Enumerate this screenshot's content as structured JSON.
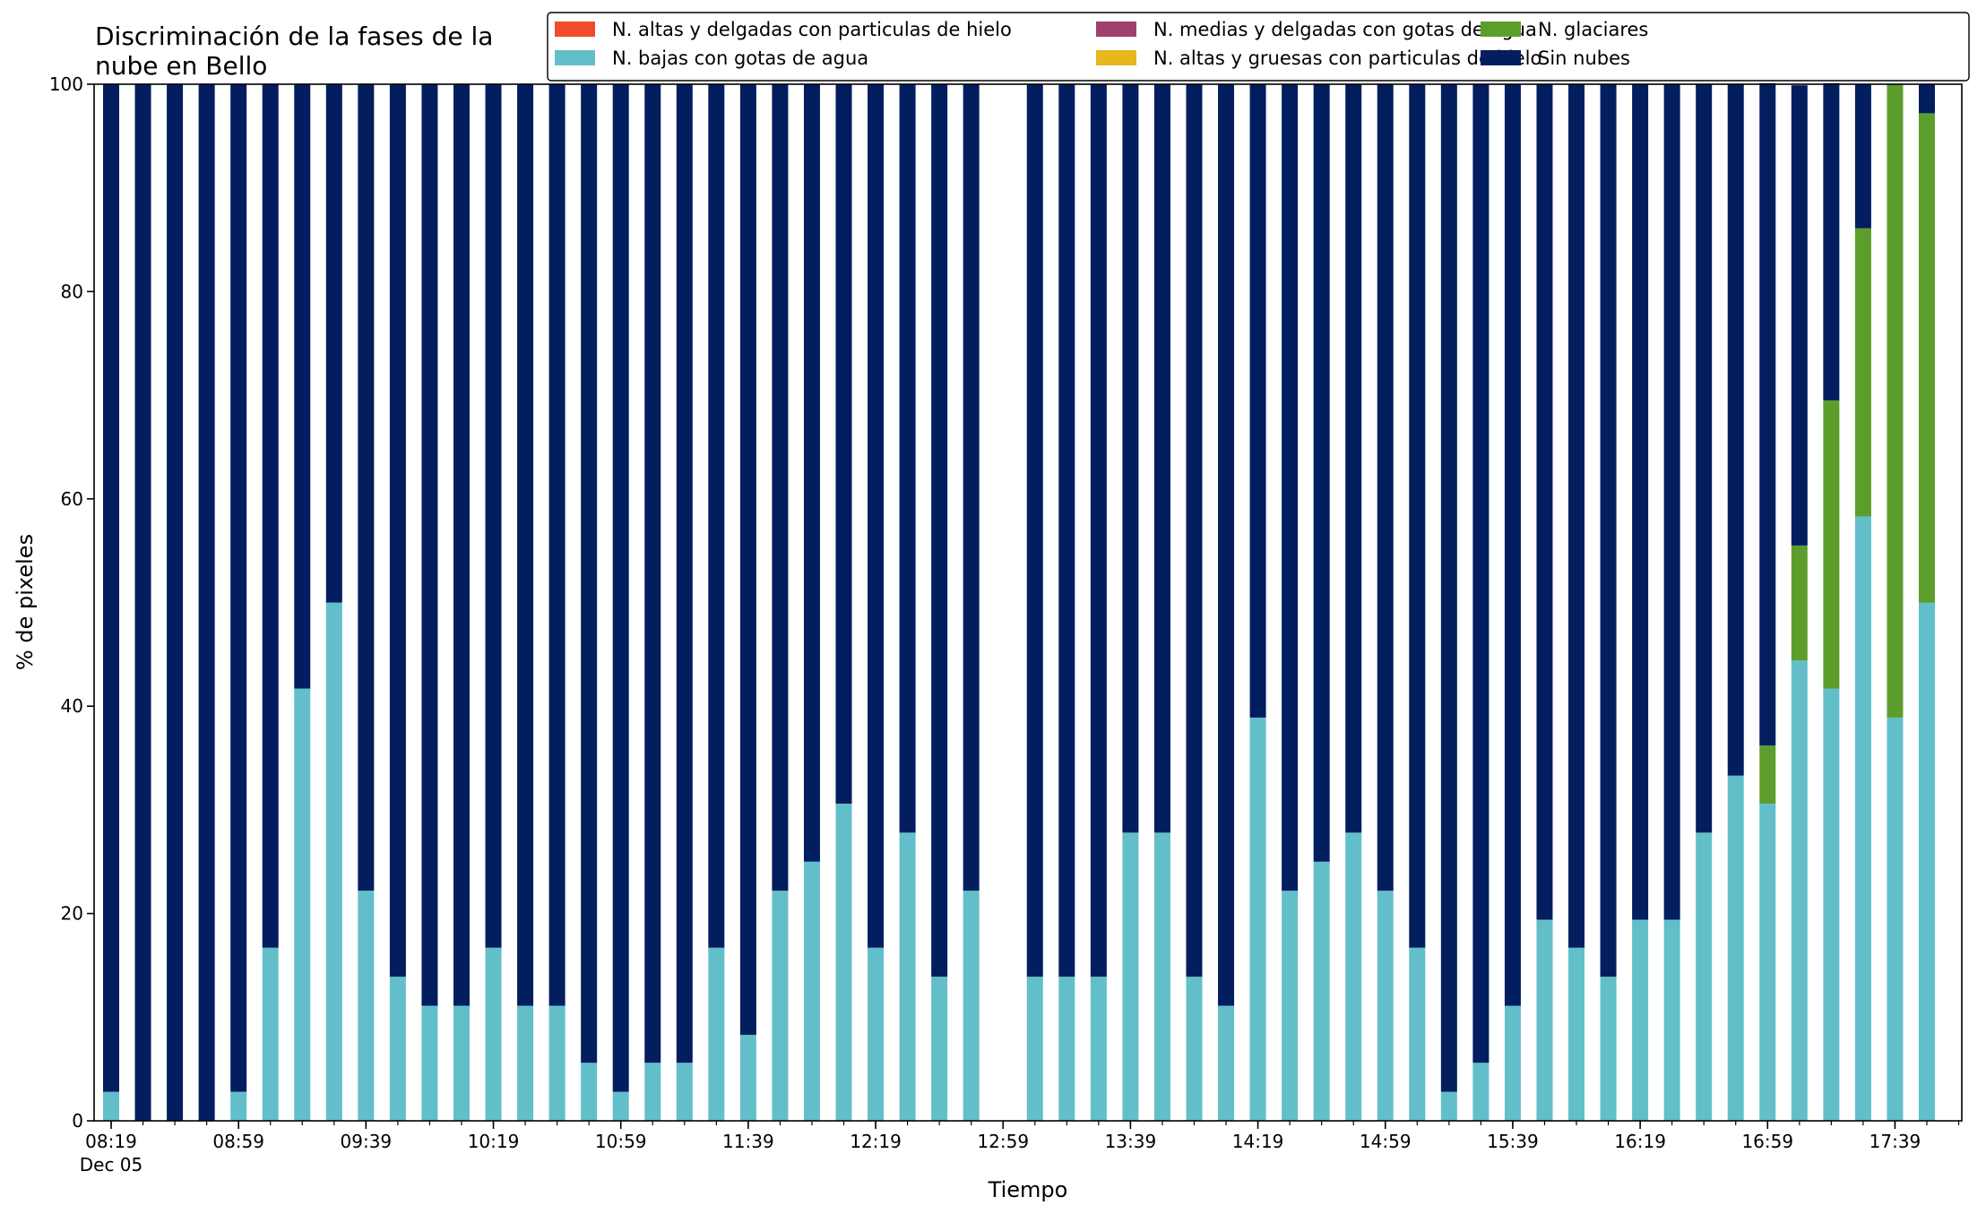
{
  "chart_data": {
    "type": "bar",
    "stacked": true,
    "title": [
      "Discriminación de la fases de la",
      "nube en Bello"
    ],
    "xlabel": "Tiempo",
    "ylabel": "% de pixeles",
    "ylim": [
      0,
      100
    ],
    "yticks": [
      0,
      20,
      40,
      60,
      80,
      100
    ],
    "grid": false,
    "legend_position": "top-right",
    "categories": [
      "08:19",
      "08:29",
      "08:39",
      "08:49",
      "08:59",
      "09:09",
      "09:19",
      "09:29",
      "09:39",
      "09:49",
      "09:59",
      "10:09",
      "10:19",
      "10:29",
      "10:39",
      "10:49",
      "10:59",
      "11:09",
      "11:19",
      "11:29",
      "11:39",
      "11:49",
      "11:59",
      "12:09",
      "12:19",
      "12:29",
      "12:39",
      "12:49",
      "12:59",
      "13:09",
      "13:19",
      "13:29",
      "13:39",
      "13:49",
      "13:59",
      "14:09",
      "14:19",
      "14:29",
      "14:39",
      "14:49",
      "14:59",
      "15:09",
      "15:19",
      "15:29",
      "15:39",
      "15:49",
      "15:59",
      "16:09",
      "16:19",
      "16:29",
      "16:39",
      "16:49",
      "16:59",
      "17:09",
      "17:19",
      "17:29",
      "17:39",
      "17:49"
    ],
    "xtick_labels": [
      {
        "category": "08:19",
        "text": "08:19",
        "sublabel": "Dec 05"
      },
      {
        "category": "08:59",
        "text": "08:59"
      },
      {
        "category": "09:39",
        "text": "09:39"
      },
      {
        "category": "10:19",
        "text": "10:19"
      },
      {
        "category": "10:59",
        "text": "10:59"
      },
      {
        "category": "11:39",
        "text": "11:39"
      },
      {
        "category": "12:19",
        "text": "12:19"
      },
      {
        "category": "12:59",
        "text": "12:59"
      },
      {
        "category": "13:39",
        "text": "13:39"
      },
      {
        "category": "14:19",
        "text": "14:19"
      },
      {
        "category": "14:59",
        "text": "14:59"
      },
      {
        "category": "15:39",
        "text": "15:39"
      },
      {
        "category": "16:19",
        "text": "16:19"
      },
      {
        "category": "16:59",
        "text": "16:59"
      },
      {
        "category": "17:39",
        "text": "17:39"
      }
    ],
    "series": [
      {
        "name": "N. altas y delgadas con particulas de hielo",
        "color": "#ee4c2c",
        "values": [
          0,
          0,
          0,
          0,
          0,
          0,
          0,
          0,
          0,
          0,
          0,
          0,
          0,
          0,
          0,
          0,
          0,
          0,
          0,
          0,
          0,
          0,
          0,
          0,
          0,
          0,
          0,
          0,
          0,
          0,
          0,
          0,
          0,
          0,
          0,
          0,
          0,
          0,
          0,
          0,
          0,
          0,
          0,
          0,
          0,
          0,
          0,
          0,
          0,
          0,
          0,
          0,
          0,
          0,
          0,
          0,
          0,
          0
        ]
      },
      {
        "name": "N. altas y gruesas con particulas de hielo",
        "color": "#e5b81e",
        "values": [
          0,
          0,
          0,
          0,
          0,
          0,
          0,
          0,
          0,
          0,
          0,
          0,
          0,
          0,
          0,
          0,
          0,
          0,
          0,
          0,
          0,
          0,
          0,
          0,
          0,
          0,
          0,
          0,
          0,
          0,
          0,
          0,
          0,
          0,
          0,
          0,
          0,
          0,
          0,
          0,
          0,
          0,
          0,
          0,
          0,
          0,
          0,
          0,
          0,
          0,
          0,
          0,
          0,
          0,
          0,
          0,
          0,
          0
        ]
      },
      {
        "name": "N. bajas con gotas de agua",
        "color": "#62bfca",
        "values": [
          2.8,
          0,
          0,
          0,
          2.8,
          16.7,
          41.7,
          50,
          22.2,
          13.9,
          11.1,
          11.1,
          16.7,
          11.1,
          11.1,
          5.6,
          2.8,
          5.6,
          5.6,
          16.7,
          8.3,
          22.2,
          25,
          30.6,
          16.7,
          27.8,
          13.9,
          22.2,
          0,
          13.9,
          13.9,
          13.9,
          27.8,
          27.8,
          13.9,
          11.1,
          38.9,
          22.2,
          25,
          27.8,
          22.2,
          16.7,
          2.8,
          5.6,
          11.1,
          19.4,
          16.7,
          13.9,
          19.4,
          19.4,
          27.8,
          33.3,
          30.6,
          44.4,
          41.7,
          58.3,
          38.9,
          50
        ]
      },
      {
        "name": "N. glaciares",
        "color": "#5c9e2c",
        "values": [
          0,
          0,
          0,
          0,
          0,
          0,
          0,
          0,
          0,
          0,
          0,
          0,
          0,
          0,
          0,
          0,
          0,
          0,
          0,
          0,
          0,
          0,
          0,
          0,
          0,
          0,
          0,
          0,
          0,
          0,
          0,
          0,
          0,
          0,
          0,
          0,
          0,
          0,
          0,
          0,
          0,
          0,
          0,
          0,
          0,
          0,
          0,
          0,
          0,
          0,
          0,
          0,
          5.6,
          11.1,
          27.8,
          27.8,
          61.1,
          47.2
        ]
      },
      {
        "name": "N. medias y delgadas con gotas de agua",
        "color": "#a0406e",
        "values": [
          0,
          0,
          0,
          0,
          0,
          0,
          0,
          0,
          0,
          0,
          0,
          0,
          0,
          0,
          0,
          0,
          0,
          0,
          0,
          0,
          0,
          0,
          0,
          0,
          0,
          0,
          0,
          0,
          0,
          0,
          0,
          0,
          0,
          0,
          0,
          0,
          0,
          0,
          0,
          0,
          0,
          0,
          0,
          0,
          0,
          0,
          0,
          0,
          0,
          0,
          0,
          0,
          0,
          0,
          0,
          0,
          0,
          0
        ]
      },
      {
        "name": "Sin nubes",
        "color": "#031e5e",
        "values": [
          97.2,
          100,
          100,
          100,
          97.2,
          83.3,
          58.3,
          50,
          77.8,
          86.1,
          88.9,
          88.9,
          83.3,
          88.9,
          88.9,
          94.4,
          97.2,
          94.4,
          94.4,
          83.3,
          91.7,
          77.8,
          75,
          69.4,
          83.3,
          72.2,
          86.1,
          77.8,
          0,
          86.1,
          86.1,
          86.1,
          72.2,
          72.2,
          86.1,
          88.9,
          61.1,
          77.8,
          75,
          72.2,
          77.8,
          83.3,
          97.2,
          94.4,
          88.9,
          80.6,
          83.3,
          86.1,
          80.6,
          80.6,
          72.2,
          66.7,
          63.9,
          44.4,
          30.6,
          13.9,
          0,
          2.8
        ]
      }
    ],
    "legend_order": [
      0,
      2,
      4,
      1,
      3,
      5
    ]
  }
}
